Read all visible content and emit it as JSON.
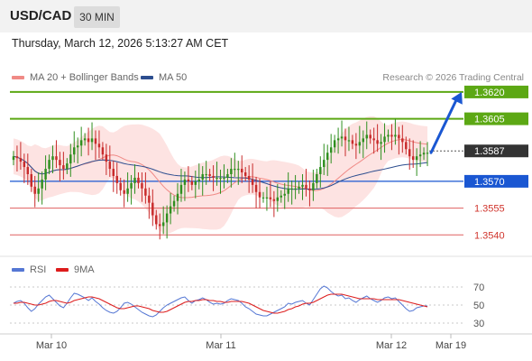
{
  "header": {
    "symbol": "USD/CAD",
    "timeframe": "30 MIN",
    "datetime": "Thursday, March 12, 2026 5:13:27 AM CET"
  },
  "legend": {
    "ma20": "MA 20 + Bollinger Bands",
    "ma50": "MA 50",
    "credit": "Research © 2026 Trading Central"
  },
  "rsi_legend": {
    "rsi": "RSI",
    "ma9": "9MA"
  },
  "colors": {
    "resistance": "#5ca814",
    "support": "#1a57d2",
    "weak_level": "#e06060",
    "candle_up": "#2f8f1f",
    "candle_down": "#c82b2b",
    "bollinger_fill": "#fde3e2",
    "ma20": "#f08a86",
    "ma50": "#2d4e8f",
    "current_price_bg": "#333333",
    "rsi_line": "#5577d4",
    "rsi_ma": "#dd1c1c"
  },
  "chart_data": [
    {
      "type": "candlestick",
      "title": "USD/CAD 30 MIN",
      "x_tick_labels": [
        "Mar 10",
        "Mar 11",
        "Mar 12",
        "Mar 19"
      ],
      "y_range": [
        1.3525,
        1.3625
      ],
      "current_price": "1.3587",
      "price_levels": [
        {
          "value": "1.3620",
          "role": "target"
        },
        {
          "value": "1.3605",
          "role": "resistance"
        },
        {
          "value": "1.3570",
          "role": "support"
        },
        {
          "value": "1.3555",
          "role": "support"
        },
        {
          "value": "1.3540",
          "role": "support"
        }
      ],
      "projection": {
        "from": 1.3586,
        "to": 1.362
      },
      "series_close": [
        1.3584,
        1.3583,
        1.3581,
        1.3578,
        1.3574,
        1.3567,
        1.3563,
        1.3566,
        1.3571,
        1.3577,
        1.3582,
        1.3584,
        1.3582,
        1.3579,
        1.3577,
        1.358,
        1.3585,
        1.3589,
        1.359,
        1.3593,
        1.3594,
        1.3592,
        1.3594,
        1.3591,
        1.3589,
        1.3585,
        1.3581,
        1.3577,
        1.3573,
        1.3569,
        1.3565,
        1.3563,
        1.3566,
        1.3569,
        1.3572,
        1.3569,
        1.3566,
        1.3562,
        1.3558,
        1.3551,
        1.3546,
        1.3545,
        1.3547,
        1.3552,
        1.3556,
        1.3559,
        1.3563,
        1.3568,
        1.3571,
        1.357,
        1.3568,
        1.357,
        1.3571,
        1.3574,
        1.3574,
        1.3573,
        1.3572,
        1.3572,
        1.3572,
        1.3572,
        1.3574,
        1.3577,
        1.3577,
        1.3577,
        1.3575,
        1.3573,
        1.3571,
        1.3568,
        1.3564,
        1.3561,
        1.3561,
        1.3561,
        1.356,
        1.3559,
        1.3561,
        1.3562,
        1.3563,
        1.3566,
        1.3566,
        1.3566,
        1.3567,
        1.3568,
        1.3566,
        1.3565,
        1.3569,
        1.3574,
        1.3578,
        1.3582,
        1.3586,
        1.3589,
        1.3593,
        1.3594,
        1.3595,
        1.3593,
        1.3593,
        1.3591,
        1.359,
        1.3592,
        1.3594,
        1.3596,
        1.3594,
        1.3593,
        1.3591,
        1.3592,
        1.3595,
        1.3596,
        1.3595,
        1.3596,
        1.3594,
        1.3592,
        1.3588,
        1.3584,
        1.3582,
        1.3584,
        1.3585,
        1.3586,
        1.3586
      ]
    },
    {
      "type": "line",
      "title": "RSI",
      "series": [
        {
          "name": "RSI"
        },
        {
          "name": "9MA"
        }
      ],
      "y_ticks": [
        "70",
        "50",
        "30"
      ],
      "y_range": [
        20,
        80
      ],
      "rsi_values": [
        52,
        54,
        55,
        52,
        47,
        43,
        46,
        51,
        55,
        59,
        61,
        57,
        53,
        49,
        47,
        52,
        58,
        63,
        62,
        60,
        58,
        55,
        58,
        54,
        51,
        47,
        44,
        42,
        41,
        43,
        47,
        52,
        53,
        51,
        48,
        45,
        42,
        40,
        38,
        37,
        39,
        43,
        47,
        50,
        52,
        54,
        56,
        58,
        59,
        55,
        52,
        55,
        56,
        58,
        56,
        53,
        51,
        52,
        51,
        52,
        55,
        57,
        56,
        55,
        52,
        48,
        46,
        43,
        40,
        39,
        38,
        38,
        40,
        42,
        44,
        46,
        48,
        52,
        51,
        53,
        54,
        55,
        52,
        50,
        56,
        62,
        68,
        71,
        69,
        65,
        62,
        60,
        61,
        57,
        58,
        55,
        53,
        56,
        58,
        60,
        57,
        55,
        53,
        55,
        58,
        59,
        57,
        58,
        54,
        50,
        46,
        43,
        44,
        47,
        48,
        49,
        49
      ],
      "ma_values": [
        52,
        52,
        53,
        53,
        52,
        51,
        50,
        50,
        51,
        52,
        54,
        55,
        55,
        54,
        53,
        52,
        53,
        55,
        56,
        57,
        58,
        59,
        59,
        58,
        57,
        55,
        53,
        51,
        49,
        47,
        46,
        46,
        47,
        48,
        49,
        49,
        48,
        47,
        46,
        44,
        43,
        42,
        42,
        43,
        45,
        47,
        49,
        51,
        53,
        54,
        54,
        55,
        55,
        56,
        56,
        55,
        55,
        54,
        54,
        53,
        53,
        54,
        54,
        54,
        54,
        53,
        52,
        50,
        48,
        46,
        44,
        43,
        42,
        41,
        41,
        42,
        43,
        45,
        46,
        48,
        49,
        51,
        52,
        52,
        53,
        55,
        57,
        59,
        61,
        62,
        62,
        62,
        62,
        61,
        60,
        59,
        58,
        57,
        57,
        57,
        57,
        57,
        56,
        56,
        56,
        56,
        56,
        56,
        56,
        55,
        54,
        53,
        52,
        51,
        50,
        49,
        48
      ]
    }
  ]
}
